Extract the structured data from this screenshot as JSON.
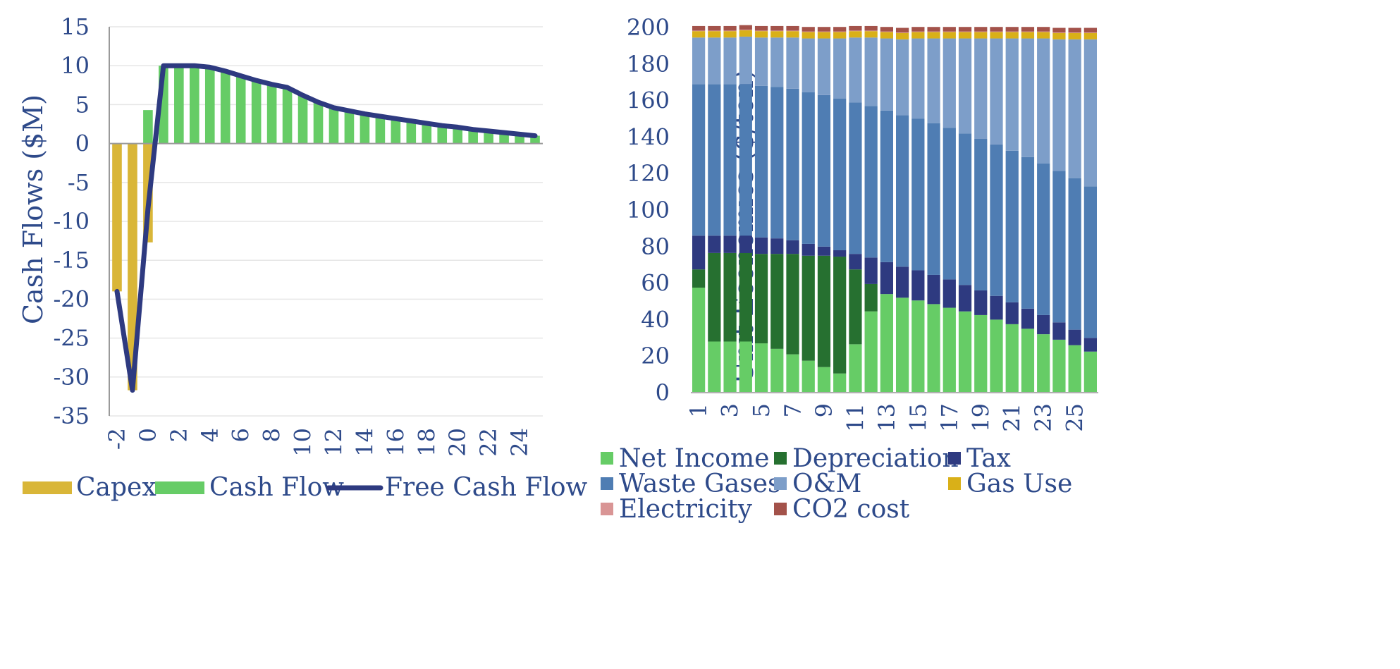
{
  "colors": {
    "capex": "#D9B638",
    "cash_flow": "#66CC66",
    "free_cash_flow": "#2E3A80",
    "net_income": "#66CC66",
    "depreciation": "#267030",
    "tax": "#2E3A80",
    "waste_gases": "#4F7DB3",
    "om": "#7D9EC9",
    "gas_use": "#D9B018",
    "electricity": "#D99595",
    "co2_cost": "#A3524A",
    "axis_text": "#2E4A8A"
  },
  "chart_data": [
    {
      "type": "bar",
      "ylabel": "Cash Flows ($M)",
      "ylim": [
        -35,
        15
      ],
      "yticks": [
        "15",
        "10",
        "5",
        "0",
        "-5",
        "-10",
        "-15",
        "-20",
        "-25",
        "-30",
        "-35"
      ],
      "xticks": [
        "-2",
        "0",
        "2",
        "4",
        "6",
        "8",
        "10",
        "12",
        "14",
        "16",
        "18",
        "20",
        "22",
        "24"
      ],
      "x": [
        -2,
        -1,
        0,
        1,
        2,
        3,
        4,
        5,
        6,
        7,
        8,
        9,
        10,
        11,
        12,
        13,
        14,
        15,
        16,
        17,
        18,
        19,
        20,
        21,
        22,
        23,
        24,
        25
      ],
      "grid": true,
      "legend_position": "bottom",
      "series": [
        {
          "name": "Capex",
          "type": "bar",
          "values": [
            -19,
            -31.7,
            -12.7,
            0,
            0,
            0,
            0,
            0,
            0,
            0,
            0,
            0,
            0,
            0,
            0,
            0,
            0,
            0,
            0,
            0,
            0,
            0,
            0,
            0,
            0,
            0,
            0,
            0
          ]
        },
        {
          "name": "Cash Flow",
          "type": "bar",
          "values": [
            0,
            0,
            4.3,
            10,
            10,
            10,
            9.8,
            9.3,
            8.7,
            8.1,
            7.6,
            7.2,
            6.2,
            5.3,
            4.6,
            4.2,
            3.8,
            3.5,
            3.2,
            2.9,
            2.6,
            2.3,
            2.1,
            1.8,
            1.6,
            1.4,
            1.2,
            1.0
          ]
        },
        {
          "name": "Free Cash Flow",
          "type": "line",
          "values": [
            -19,
            -31.7,
            -8.4,
            10,
            10,
            10,
            9.8,
            9.3,
            8.7,
            8.1,
            7.6,
            7.2,
            6.2,
            5.3,
            4.6,
            4.2,
            3.8,
            3.5,
            3.2,
            2.9,
            2.6,
            2.3,
            2.1,
            1.8,
            1.6,
            1.4,
            1.2,
            1.0
          ]
        }
      ]
    },
    {
      "type": "bar",
      "stacked": true,
      "ylabel": "Unit Economics ($/ton)",
      "ylim": [
        0,
        200
      ],
      "yticks": [
        "200",
        "180",
        "160",
        "140",
        "120",
        "100",
        "80",
        "60",
        "40",
        "20",
        "0"
      ],
      "categories": [
        "1",
        "2",
        "3",
        "4",
        "5",
        "6",
        "7",
        "8",
        "9",
        "10",
        "11",
        "12",
        "13",
        "14",
        "15",
        "16",
        "17",
        "18",
        "19",
        "20",
        "21",
        "22",
        "23",
        "24",
        "25",
        "26"
      ],
      "xticks": [
        "1",
        "3",
        "5",
        "7",
        "9",
        "11",
        "13",
        "15",
        "17",
        "19",
        "21",
        "23",
        "25"
      ],
      "grid": false,
      "legend_position": "bottom",
      "series": [
        {
          "name": "Net Income",
          "values": [
            57.5,
            28,
            28,
            28,
            27,
            24,
            21,
            17.5,
            14,
            10.5,
            26.5,
            44.5,
            54,
            52,
            50.5,
            48.5,
            46.5,
            44.5,
            42.5,
            40,
            37.5,
            35,
            32,
            29,
            26,
            22.5
          ]
        },
        {
          "name": "Depreciation",
          "values": [
            10,
            48.5,
            48.5,
            48.5,
            49,
            52,
            55,
            57.5,
            61,
            64,
            41,
            15,
            0,
            0,
            0,
            0,
            0,
            0,
            0,
            0,
            0,
            0,
            0,
            0,
            0,
            0
          ]
        },
        {
          "name": "Tax",
          "values": [
            18.5,
            9.5,
            9.5,
            9.5,
            9,
            8.5,
            7.5,
            6.5,
            5,
            3.5,
            8.5,
            14.5,
            17.5,
            17,
            16.5,
            16,
            15.5,
            14.5,
            13.5,
            13,
            12,
            11,
            10.5,
            9.5,
            8.5,
            7.5
          ]
        },
        {
          "name": "Waste Gases",
          "values": [
            83,
            83,
            83,
            83,
            83,
            83,
            83,
            83,
            83,
            83,
            83,
            83,
            83,
            83,
            83,
            83,
            83,
            83,
            83,
            83,
            83,
            83,
            83,
            83,
            83,
            83
          ]
        },
        {
          "name": "O&M",
          "values": [
            25.5,
            25.5,
            25.5,
            26,
            26.5,
            27,
            28,
            29.5,
            31,
            33,
            35.5,
            37.5,
            39.5,
            41.5,
            44,
            46.5,
            49,
            52,
            55,
            58,
            61.5,
            65,
            68.5,
            72,
            76,
            80.5
          ]
        },
        {
          "name": "Gas Use",
          "values": [
            3.5,
            3.5,
            3.5,
            3.5,
            3.5,
            3.5,
            3.5,
            3.5,
            3.5,
            3.5,
            3.5,
            3.5,
            3.5,
            3.5,
            3.5,
            3.5,
            3.5,
            3.5,
            3.5,
            3.5,
            3.5,
            3.5,
            3.5,
            3.5,
            3.5,
            3.5
          ]
        },
        {
          "name": "Electricity",
          "values": [
            0.3,
            0.3,
            0.3,
            0.3,
            0.3,
            0.3,
            0.3,
            0.3,
            0.3,
            0.3,
            0.3,
            0.3,
            0.3,
            0.3,
            0.3,
            0.3,
            0.3,
            0.3,
            0.3,
            0.3,
            0.3,
            0.3,
            0.3,
            0.3,
            0.3,
            0.3
          ]
        },
        {
          "name": "CO2 cost",
          "values": [
            2.5,
            2.5,
            2.5,
            2.5,
            2.5,
            2.5,
            2.5,
            2.5,
            2.5,
            2.5,
            2.5,
            2.5,
            2.5,
            2.5,
            2.5,
            2.5,
            2.5,
            2.5,
            2.5,
            2.5,
            2.5,
            2.5,
            2.5,
            2.5,
            2.5,
            2.5
          ]
        }
      ]
    }
  ],
  "legends": {
    "left": [
      "Capex",
      "Cash Flow",
      "Free Cash Flow"
    ],
    "right": [
      "Net Income",
      "Depreciation",
      "Tax",
      "Waste Gases",
      "O&M",
      "Gas Use",
      "Electricity",
      "CO2 cost"
    ]
  }
}
